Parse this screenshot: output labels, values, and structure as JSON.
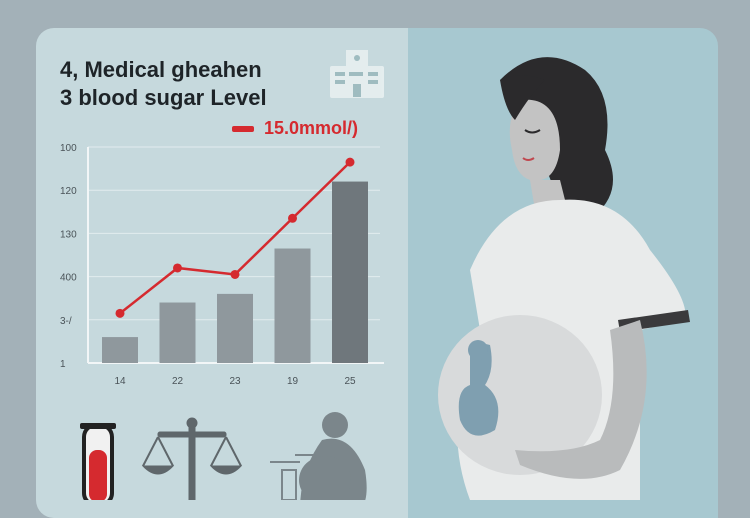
{
  "title_line1": "4, Medical gheahen",
  "title_line2": "3 blood sugar Level",
  "legend_label": "15.0mmol/)",
  "colors": {
    "line": "#d52a2f",
    "bar_light": "#8f989d",
    "bar_dark": "#6f777c",
    "panel": "#c6d9dd",
    "background": "#a3b1b8"
  },
  "icons": [
    "hospital-icon",
    "test-tube-icon",
    "balance-scale-icon",
    "pregnant-woman-icon"
  ],
  "chart_data": {
    "type": "bar+line",
    "categories": [
      "14",
      "22",
      "23",
      "19",
      "25"
    ],
    "y_tick_labels": [
      "1",
      "3-/",
      "400",
      "130",
      "120",
      "100"
    ],
    "y_scale": "tick index (axis labels are non-numeric/irregular)",
    "ylim": [
      0,
      5
    ],
    "grid": true,
    "legend": "top-right",
    "series": [
      {
        "type": "bar",
        "values": [
          0.6,
          1.4,
          1.6,
          2.65,
          4.2
        ]
      },
      {
        "type": "line",
        "name": "15.0mmol/)",
        "values": [
          1.15,
          2.2,
          2.05,
          3.35,
          4.65
        ]
      }
    ]
  }
}
